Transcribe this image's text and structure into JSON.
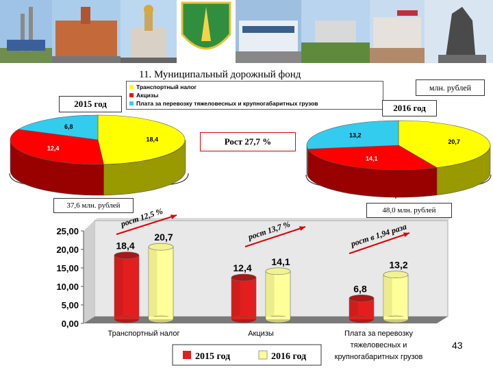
{
  "title": "11. Муниципальный дорожный фонд",
  "units": "млн. рублей",
  "growth_total": "Рост 27,7 %",
  "pie_legend": [
    {
      "label": "Транспортный налог",
      "color": "#ffff00"
    },
    {
      "label": "Акцизы",
      "color": "#ff0000"
    },
    {
      "label": "Плата за перевозку тяжеловесных и крупногабаритных грузов",
      "color": "#33ccee"
    }
  ],
  "pie_2015": {
    "label": "2015 год",
    "total": "37,6 млн. рублей"
  },
  "pie_2016": {
    "label": "2016 год",
    "total": "48,0 млн. рублей"
  },
  "growth_labels": [
    "рост 12,5 %",
    "рост 13,7 %",
    "рост в 1,94 раза"
  ],
  "page_number": "43",
  "chart_data": [
    {
      "type": "pie",
      "title": "2015 год",
      "labels": [
        "Транспортный налог",
        "Акцизы",
        "Плата за перевозку тяжеловесных и крупногабаритных грузов"
      ],
      "values": [
        18.4,
        12.4,
        6.8
      ],
      "value_labels": [
        "18,4",
        "12,4",
        "6,8"
      ],
      "colors": [
        "#ffff00",
        "#ff0000",
        "#33ccee"
      ]
    },
    {
      "type": "pie",
      "title": "2016 год",
      "labels": [
        "Транспортный налог",
        "Акцизы",
        "Плата за перевозку тяжеловесных и крупногабаритных грузов"
      ],
      "values": [
        20.7,
        14.1,
        13.2
      ],
      "value_labels": [
        "20,7",
        "14,1",
        "13,2"
      ],
      "colors": [
        "#ffff00",
        "#ff0000",
        "#33ccee"
      ]
    },
    {
      "type": "bar",
      "categories": [
        [
          "Транспортный налог"
        ],
        [
          "Акцизы"
        ],
        [
          "Плата за перевозку",
          "тяжеловесных и",
          "крупногабаритных грузов"
        ]
      ],
      "series": [
        {
          "name": "2015 год",
          "values": [
            18.4,
            12.4,
            6.8
          ],
          "value_labels": [
            "18,4",
            "12,4",
            "6,8"
          ],
          "color": "#e31e1e"
        },
        {
          "name": "2016 год",
          "values": [
            20.7,
            14.1,
            13.2
          ],
          "value_labels": [
            "20,7",
            "14,1",
            "13,2"
          ],
          "color": "#ffff99"
        }
      ],
      "ylim": [
        0,
        25
      ],
      "yticks": [
        0,
        5,
        10,
        15,
        20,
        25
      ],
      "ytick_labels": [
        "0,00",
        "5,00",
        "10,00",
        "15,00",
        "20,00",
        "25,00"
      ],
      "grid": false,
      "legend": "bottom"
    }
  ]
}
